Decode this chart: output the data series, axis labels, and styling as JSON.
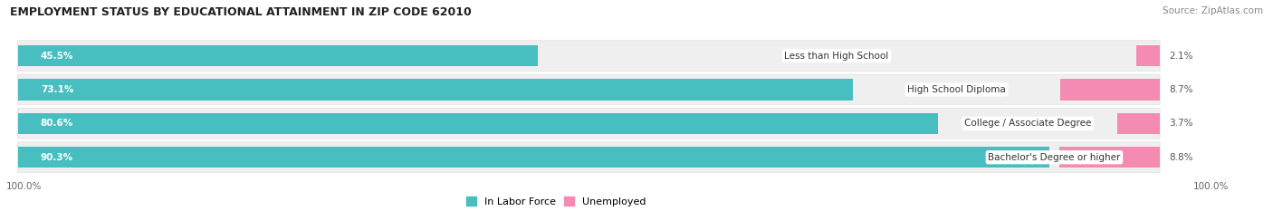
{
  "title": "EMPLOYMENT STATUS BY EDUCATIONAL ATTAINMENT IN ZIP CODE 62010",
  "source": "Source: ZipAtlas.com",
  "categories": [
    "Less than High School",
    "High School Diploma",
    "College / Associate Degree",
    "Bachelor's Degree or higher"
  ],
  "labor_force": [
    45.5,
    73.1,
    80.6,
    90.3
  ],
  "unemployed": [
    2.1,
    8.7,
    3.7,
    8.8
  ],
  "labor_force_color": "#47bfc0",
  "unemployed_color": "#f48cb1",
  "row_bg_color": "#efefef",
  "row_bg_edge": "#e0e0e0",
  "max_value": 100.0,
  "bottom_left_label": "100.0%",
  "bottom_right_label": "100.0%",
  "legend_labor": "In Labor Force",
  "legend_unemployed": "Unemployed",
  "title_fontsize": 9.0,
  "source_fontsize": 7.5,
  "label_fontsize": 7.5,
  "bar_label_fontsize": 7.5,
  "category_fontsize": 7.5,
  "legend_fontsize": 8.0,
  "background_color": "#ffffff"
}
